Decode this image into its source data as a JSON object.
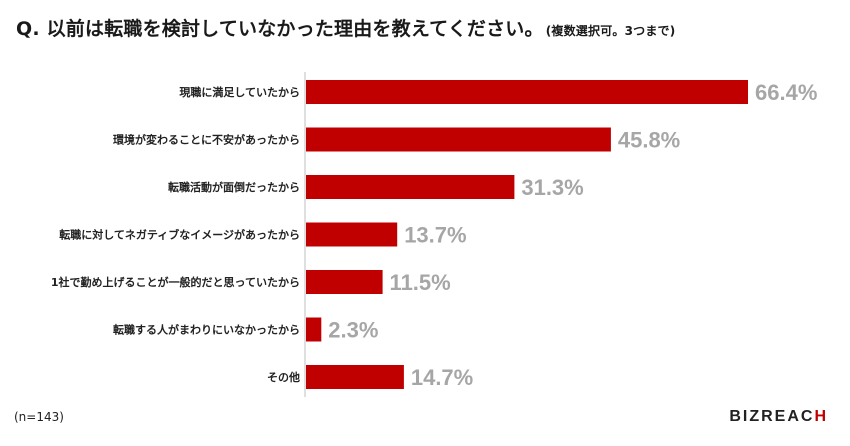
{
  "header": {
    "question": "Q. 以前は転職を検討していなかった理由を教えてください。",
    "note": "(複数選択可。3つまで)"
  },
  "footer": {
    "sample_size": "(n=143)",
    "logo_main": "BIZREAC",
    "logo_accent": "H"
  },
  "colors": {
    "bar": "#c00000",
    "value_label": "#a6a6a6",
    "axis": "#bfbfbf"
  },
  "chart_data": {
    "type": "bar",
    "orientation": "horizontal",
    "categories": [
      "現職に満足していたから",
      "環境が変わることに不安があったから",
      "転職活動が面倒だったから",
      "転職に対してネガティブなイメージがあったから",
      "1社で勤め上げることが一般的だと思っていたから",
      "転職する人がまわりにいなかったから",
      "その他"
    ],
    "values": [
      66.4,
      45.8,
      31.3,
      13.7,
      11.5,
      2.3,
      14.7
    ],
    "value_labels": [
      "66.4%",
      "45.8%",
      "31.3%",
      "13.7%",
      "11.5%",
      "2.3%",
      "14.7%"
    ],
    "xlim": [
      0,
      66.4
    ],
    "grid": false,
    "legend": "none"
  }
}
